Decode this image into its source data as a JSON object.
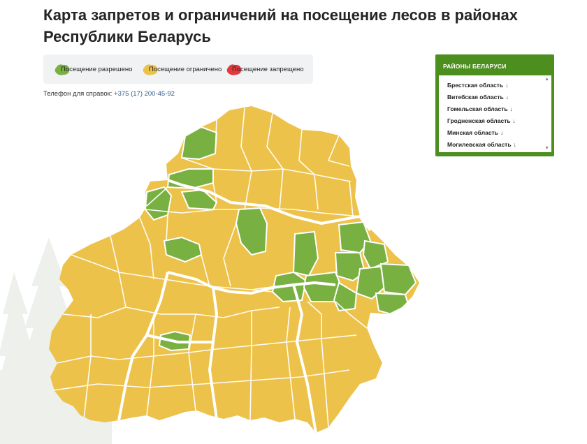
{
  "title": "Карта запретов и ограничений на посещение лесов в районах Республики Беларусь",
  "legend": {
    "allowed": {
      "label": "Посещение разрешено",
      "color": "#78b042"
    },
    "limited": {
      "label": "Посещение ограничено",
      "color": "#ecc24b"
    },
    "banned": {
      "label": "Посещение запрещено",
      "color": "#e03a3e"
    }
  },
  "phone": {
    "label": "Телефон для справок:",
    "number": "+375 (17) 200-45-92"
  },
  "regions_panel": {
    "title": "РАЙОНЫ БЕЛАРУСИ",
    "items": [
      {
        "label": "Брестская область",
        "arrow": "↓"
      },
      {
        "label": "Витебская область",
        "arrow": "↓"
      },
      {
        "label": "Гомельская область",
        "arrow": "↓"
      },
      {
        "label": "Гродненская область",
        "arrow": "↓"
      },
      {
        "label": "Минская область",
        "arrow": "↓"
      },
      {
        "label": "Могилевская область",
        "arrow": "↓"
      }
    ],
    "scroll_up": "▲",
    "scroll_down": "▼",
    "colors": {
      "header": "#4d8f1f"
    }
  }
}
